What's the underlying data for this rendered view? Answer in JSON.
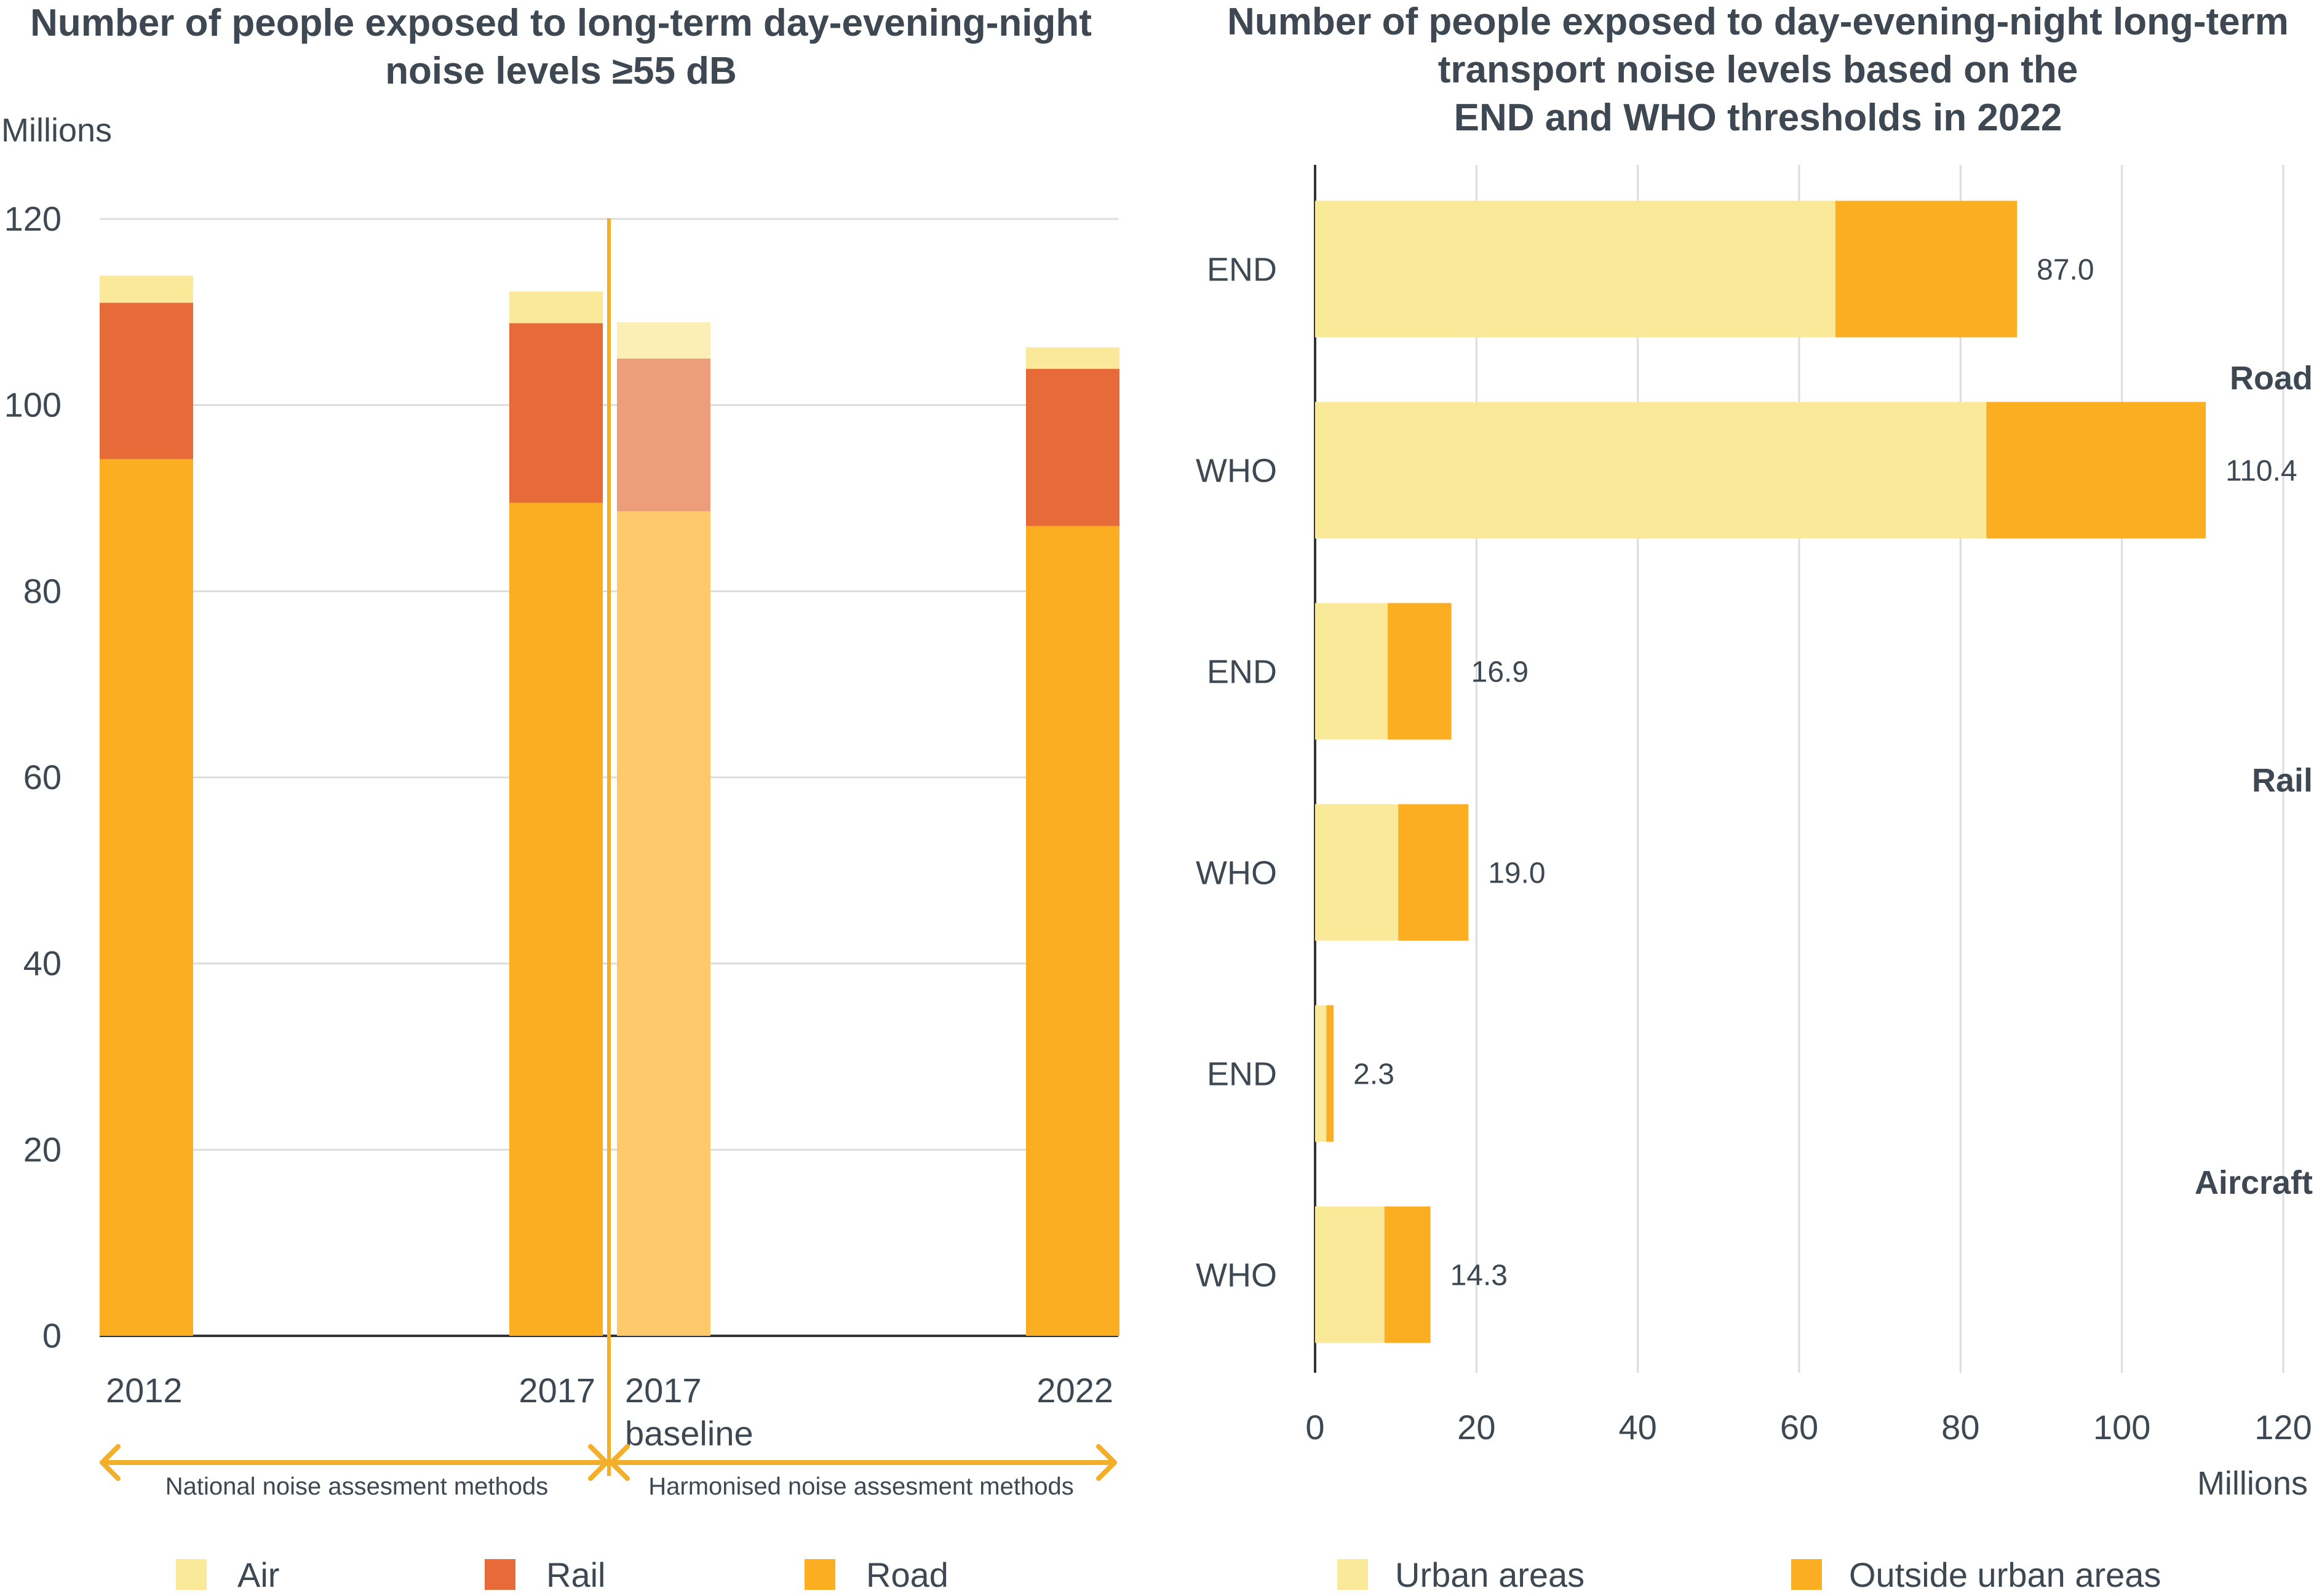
{
  "colors": {
    "air": "#fbe99a",
    "rail": "#e66b39",
    "road": "#fcae22",
    "air_baseline": "#fcefb5",
    "rail_baseline": "#ee9d7a",
    "road_baseline": "#fdc96a",
    "urban": "#fbe99a",
    "outside": "#fcae22",
    "grid": "#dcdcdc",
    "axis": "#333333",
    "separator": "#f3ae2a"
  },
  "left_chart": {
    "title_lines": [
      "Number of people exposed to long-term day-evening-night",
      "noise levels ≥55 dB"
    ],
    "y_unit": "Millions",
    "methods": {
      "national": "National noise assesment methods",
      "harmonised": "Harmonised noise assesment methods"
    },
    "legend": [
      {
        "label": "Air",
        "key": "air"
      },
      {
        "label": "Rail",
        "key": "rail"
      },
      {
        "label": "Road",
        "key": "road"
      }
    ]
  },
  "right_chart": {
    "title_lines": [
      "Number of people exposed to day-evening-night long-term",
      "transport noise levels based on the",
      "END and WHO thresholds in 2022"
    ],
    "x_unit": "Millions",
    "legend": [
      {
        "label": "Urban areas",
        "key": "urban"
      },
      {
        "label": "Outside urban areas",
        "key": "outside"
      }
    ]
  },
  "chart_data": [
    {
      "type": "bar",
      "stacked": true,
      "title": "Number of people exposed to long-term day-evening-night noise levels ≥55 dB",
      "ylabel": "Millions",
      "ylim": [
        0,
        120
      ],
      "yticks": [
        0,
        20,
        40,
        60,
        80,
        100,
        120
      ],
      "grid": true,
      "legend_position": "bottom",
      "categories": [
        "2012",
        "2017",
        "2017 baseline",
        "2022"
      ],
      "series": [
        {
          "name": "Road",
          "values": [
            94.2,
            89.5,
            88.6,
            87.0
          ]
        },
        {
          "name": "Rail",
          "values": [
            16.8,
            19.3,
            16.4,
            16.9
          ]
        },
        {
          "name": "Air",
          "values": [
            2.9,
            3.4,
            3.9,
            2.3
          ]
        }
      ]
    },
    {
      "type": "bar",
      "orientation": "horizontal",
      "stacked": true,
      "title": "Number of people exposed to day-evening-night long-term transport noise levels based on the END and WHO thresholds in 2022",
      "xlabel": "Millions",
      "xlim": [
        0,
        120
      ],
      "xticks": [
        0,
        20,
        40,
        60,
        80,
        100,
        120
      ],
      "grid": true,
      "legend_position": "bottom",
      "groups": [
        {
          "name": "Road",
          "rows": [
            {
              "label": "END",
              "urban": 64.5,
              "outside": 22.5,
              "total": "87.0"
            },
            {
              "label": "WHO",
              "urban": 83.2,
              "outside": 27.2,
              "total": "110.4"
            }
          ]
        },
        {
          "name": "Rail",
          "rows": [
            {
              "label": "END",
              "urban": 9.0,
              "outside": 7.9,
              "total": "16.9"
            },
            {
              "label": "WHO",
              "urban": 10.3,
              "outside": 8.7,
              "total": "19.0"
            }
          ]
        },
        {
          "name": "Aircraft",
          "rows": [
            {
              "label": "END",
              "urban": 1.4,
              "outside": 0.9,
              "total": "2.3"
            },
            {
              "label": "WHO",
              "urban": 8.6,
              "outside": 5.7,
              "total": "14.3"
            }
          ]
        }
      ]
    }
  ]
}
